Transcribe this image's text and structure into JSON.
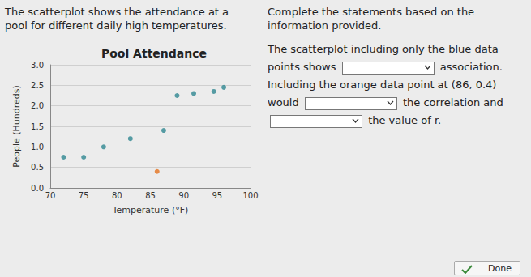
{
  "page": {
    "prompt": "The scatterplot shows the attendance at a pool for different daily high temperatures.",
    "instructions": "Complete the statements based on the information provided.",
    "statement_parts": [
      "The scatterplot including only the blue data points shows",
      "association. Including the orange data point at (86, 0.4) would",
      "the correlation and",
      "the value of r."
    ],
    "button": "Done"
  },
  "chart_data": {
    "type": "scatter",
    "title": "Pool Attendance",
    "x_label": "Temperature (°F)",
    "y_label": "People (Hundreds)",
    "series": [
      {
        "color": "#2f8791",
        "x": [
          72,
          75,
          78,
          82,
          87,
          89,
          91.5,
          94.5,
          96
        ],
        "values": [
          0.75,
          0.75,
          1.0,
          1.2,
          1.4,
          2.25,
          2.3,
          2.35,
          2.45
        ]
      },
      {
        "color": "#e5731f",
        "x": [
          86
        ],
        "values": [
          0.4
        ]
      }
    ],
    "xlim": [
      70,
      100
    ],
    "xticks": [
      70,
      75,
      80,
      85,
      90,
      95,
      100
    ],
    "ylim": [
      0,
      3
    ],
    "yticks": [
      {
        "value": 0,
        "label": "0.0"
      },
      {
        "value": 0.5,
        "label": "0.5"
      },
      {
        "value": 1,
        "label": "1.0"
      },
      {
        "value": 1.5,
        "label": "1.5"
      },
      {
        "value": 2,
        "label": "2.0"
      },
      {
        "value": 2.5,
        "label": "2.5"
      },
      {
        "value": 3,
        "label": "3.0"
      }
    ],
    "grid": true
  }
}
